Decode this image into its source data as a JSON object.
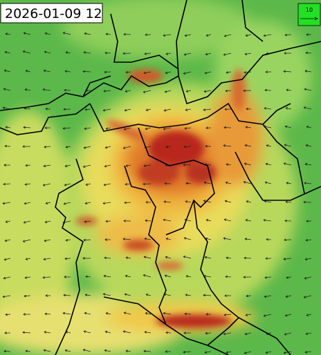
{
  "timestamp": "2026-01-09 12",
  "legend": {
    "label": "10"
  }
}
